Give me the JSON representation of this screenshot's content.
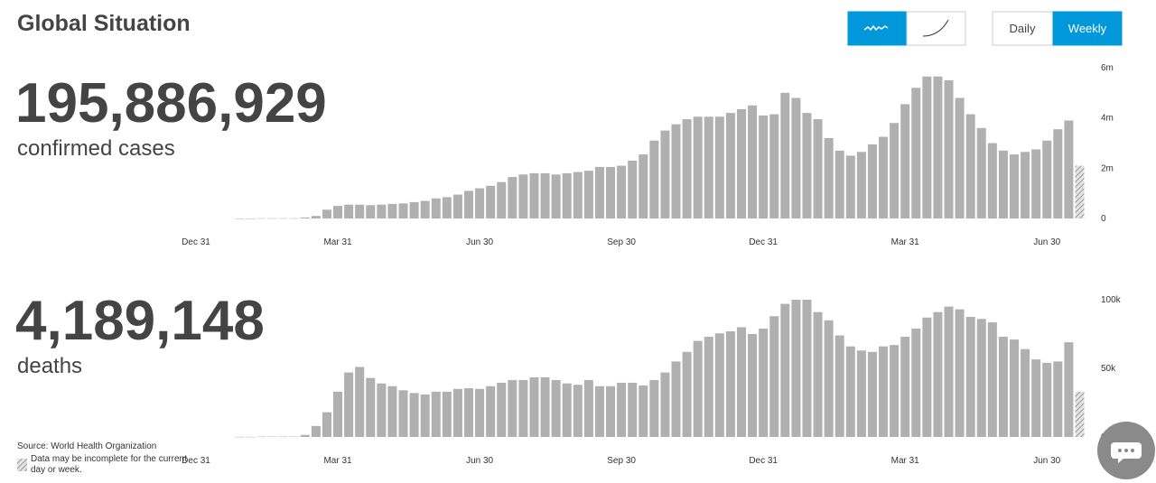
{
  "header": {
    "title": "Global Situation",
    "toggle": {
      "daily": "Daily",
      "weekly": "Weekly"
    }
  },
  "footer": {
    "source": "Source: World Health Organization",
    "note": "Data may be incomplete for the current day or week."
  },
  "chart_data": [
    {
      "type": "bar",
      "total": "195,886,929",
      "label": "confirmed cases",
      "color": "#b0b0b0",
      "categories": [
        "Dec 31",
        null,
        null,
        null,
        null,
        null,
        null,
        null,
        null,
        null,
        null,
        null,
        null,
        "Mar 31",
        null,
        null,
        null,
        null,
        null,
        null,
        null,
        null,
        null,
        null,
        null,
        null,
        "Jun 30",
        null,
        null,
        null,
        null,
        null,
        null,
        null,
        null,
        null,
        null,
        null,
        null,
        "Sep 30",
        null,
        null,
        null,
        null,
        null,
        null,
        null,
        null,
        null,
        null,
        null,
        null,
        "Dec 31",
        null,
        null,
        null,
        null,
        null,
        null,
        null,
        null,
        null,
        null,
        null,
        null,
        "Mar 31",
        null,
        null,
        null,
        null,
        null,
        null,
        null,
        null,
        null,
        null,
        null,
        null,
        "Jun 30",
        null,
        null,
        null
      ],
      "values": [
        null,
        null,
        null,
        null,
        0,
        0,
        0.01,
        0.01,
        0.01,
        0.01,
        0.04,
        0.1,
        0.35,
        0.5,
        0.55,
        0.55,
        0.53,
        0.55,
        0.58,
        0.6,
        0.65,
        0.7,
        0.8,
        0.85,
        0.95,
        1.1,
        1.2,
        1.3,
        1.45,
        1.65,
        1.75,
        1.8,
        1.8,
        1.75,
        1.8,
        1.85,
        1.9,
        2.05,
        2.05,
        2.1,
        2.3,
        2.55,
        3.1,
        3.5,
        3.75,
        3.95,
        4.05,
        4.05,
        4.05,
        4.2,
        4.35,
        4.5,
        4.1,
        4.15,
        5.0,
        4.8,
        4.2,
        3.95,
        3.2,
        2.7,
        2.5,
        2.65,
        2.95,
        3.25,
        3.8,
        4.55,
        5.2,
        5.65,
        5.65,
        5.5,
        4.8,
        4.15,
        3.6,
        3.0,
        2.7,
        2.55,
        2.65,
        2.75,
        3.1,
        3.55,
        3.9,
        2.1
      ],
      "ylim": [
        0,
        6
      ],
      "yticks": [
        0,
        {
          "value": 2,
          "label": "2m"
        },
        {
          "value": 4,
          "label": "4m"
        },
        {
          "value": 6,
          "label": "6m"
        }
      ]
    },
    {
      "type": "bar",
      "total": "4,189,148",
      "label": "deaths",
      "color": "#b0b0b0",
      "categories": [
        "Dec 31",
        null,
        null,
        null,
        null,
        null,
        null,
        null,
        null,
        null,
        null,
        null,
        null,
        "Mar 31",
        null,
        null,
        null,
        null,
        null,
        null,
        null,
        null,
        null,
        null,
        null,
        null,
        "Jun 30",
        null,
        null,
        null,
        null,
        null,
        null,
        null,
        null,
        null,
        null,
        null,
        null,
        "Sep 30",
        null,
        null,
        null,
        null,
        null,
        null,
        null,
        null,
        null,
        null,
        null,
        null,
        "Dec 31",
        null,
        null,
        null,
        null,
        null,
        null,
        null,
        null,
        null,
        null,
        null,
        null,
        "Mar 31",
        null,
        null,
        null,
        null,
        null,
        null,
        null,
        null,
        null,
        null,
        null,
        null,
        "Jun 30",
        null,
        null,
        null
      ],
      "values": [
        null,
        null,
        null,
        null,
        0.1,
        0.1,
        0.3,
        0.3,
        0.3,
        0.3,
        1.5,
        8,
        18,
        33,
        47,
        51,
        43,
        39,
        37,
        34,
        32,
        31,
        33,
        33,
        35,
        35.5,
        35,
        37,
        39.5,
        41.5,
        41.5,
        43.5,
        43.5,
        41.5,
        39,
        38,
        41.5,
        37,
        37,
        39.5,
        39.5,
        37.5,
        41.5,
        47,
        55,
        62,
        70,
        73,
        75.5,
        77,
        80,
        75,
        79,
        88,
        97,
        100,
        100,
        91,
        85,
        74,
        66,
        63,
        62,
        66,
        67,
        73,
        79,
        87,
        91,
        95,
        93,
        87.5,
        86,
        83.5,
        73,
        71,
        64,
        56.5,
        54,
        55,
        69,
        33
      ],
      "ylim": [
        0,
        100
      ],
      "yticks": [
        0,
        {
          "value": 50,
          "label": "50k"
        },
        {
          "value": 100,
          "label": "100k"
        }
      ]
    }
  ]
}
